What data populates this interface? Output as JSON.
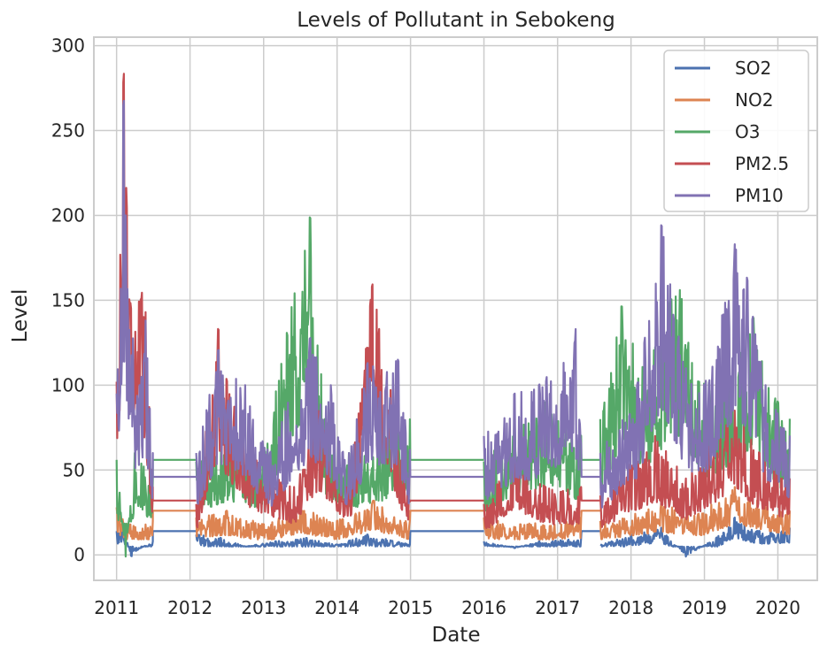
{
  "chart_data": {
    "type": "line",
    "title": "Levels of Pollutant in Sebokeng",
    "xlabel": "Date",
    "ylabel": "Level",
    "xlim": [
      "2010-09-10",
      "2020-07-15"
    ],
    "ylim": [
      -15,
      305
    ],
    "x_ticks": [
      "2011",
      "2012",
      "2013",
      "2014",
      "2015",
      "2016",
      "2017",
      "2018",
      "2019",
      "2020"
    ],
    "y_ticks": [
      0,
      50,
      100,
      150,
      200,
      250,
      300
    ],
    "grid": true,
    "legend_position": "top-right",
    "colors": {
      "SO2": "#4c72b0",
      "NO2": "#dd8452",
      "O3": "#55a868",
      "PM2.5": "#c44e52",
      "PM10": "#8172b3",
      "grid": "#cccccc",
      "background": "#ffffff"
    },
    "data_segments": [
      [
        "2011-01-01",
        "2011-06-30"
      ],
      [
        "2012-02-01",
        "2014-12-31"
      ],
      [
        "2016-01-01",
        "2017-04-30"
      ],
      [
        "2017-08-01",
        "2020-03-01"
      ]
    ],
    "series": [
      {
        "name": "SO2",
        "gap_fill_value": 14,
        "points": [
          [
            "2011-01-01",
            14
          ],
          [
            "2011-02-01",
            18
          ],
          [
            "2011-03-15",
            -1
          ],
          [
            "2011-05-01",
            4
          ],
          [
            "2011-06-30",
            8
          ],
          [
            "2012-02-01",
            12
          ],
          [
            "2012-06-01",
            10
          ],
          [
            "2012-10-01",
            5
          ],
          [
            "2013-03-01",
            8
          ],
          [
            "2013-08-01",
            10
          ],
          [
            "2014-01-01",
            6
          ],
          [
            "2014-06-01",
            12
          ],
          [
            "2014-12-31",
            6
          ],
          [
            "2016-01-01",
            8
          ],
          [
            "2016-06-01",
            4
          ],
          [
            "2016-10-01",
            8
          ],
          [
            "2017-04-30",
            10
          ],
          [
            "2017-08-01",
            6
          ],
          [
            "2018-01-01",
            12
          ],
          [
            "2018-06-01",
            16
          ],
          [
            "2018-10-01",
            -1
          ],
          [
            "2019-03-01",
            10
          ],
          [
            "2019-06-01",
            22
          ],
          [
            "2019-10-01",
            14
          ],
          [
            "2020-03-01",
            16
          ]
        ]
      },
      {
        "name": "NO2",
        "gap_fill_value": 26,
        "points": [
          [
            "2011-01-01",
            28
          ],
          [
            "2011-03-01",
            18
          ],
          [
            "2011-06-30",
            20
          ],
          [
            "2012-02-01",
            22
          ],
          [
            "2012-07-01",
            26
          ],
          [
            "2013-01-01",
            18
          ],
          [
            "2013-07-01",
            28
          ],
          [
            "2014-01-01",
            20
          ],
          [
            "2014-07-01",
            32
          ],
          [
            "2014-12-31",
            20
          ],
          [
            "2016-01-01",
            22
          ],
          [
            "2016-07-01",
            18
          ],
          [
            "2017-04-30",
            22
          ],
          [
            "2017-08-01",
            20
          ],
          [
            "2018-06-01",
            30
          ],
          [
            "2018-12-01",
            24
          ],
          [
            "2019-06-01",
            40
          ],
          [
            "2020-03-01",
            26
          ]
        ]
      },
      {
        "name": "O3",
        "gap_fill_value": 56,
        "points": [
          [
            "2011-01-01",
            56
          ],
          [
            "2011-02-15",
            -1
          ],
          [
            "2011-04-01",
            60
          ],
          [
            "2011-06-30",
            45
          ],
          [
            "2012-02-01",
            55
          ],
          [
            "2012-07-01",
            70
          ],
          [
            "2013-01-01",
            60
          ],
          [
            "2013-05-20",
            146
          ],
          [
            "2013-08-20",
            200
          ],
          [
            "2013-11-01",
            80
          ],
          [
            "2014-03-01",
            60
          ],
          [
            "2014-08-01",
            70
          ],
          [
            "2014-12-31",
            80
          ],
          [
            "2016-01-01",
            55
          ],
          [
            "2016-06-01",
            78
          ],
          [
            "2016-11-01",
            90
          ],
          [
            "2017-04-30",
            70
          ],
          [
            "2017-08-01",
            80
          ],
          [
            "2017-11-15",
            147
          ],
          [
            "2018-03-01",
            110
          ],
          [
            "2018-07-15",
            150
          ],
          [
            "2018-09-01",
            156
          ],
          [
            "2019-01-01",
            100
          ],
          [
            "2019-05-01",
            115
          ],
          [
            "2019-09-01",
            140
          ],
          [
            "2020-01-01",
            90
          ],
          [
            "2020-03-01",
            80
          ]
        ]
      },
      {
        "name": "PM2.5",
        "gap_fill_value": 32,
        "points": [
          [
            "2011-01-01",
            102
          ],
          [
            "2011-02-05",
            289
          ],
          [
            "2011-02-20",
            205
          ],
          [
            "2011-05-25",
            143
          ],
          [
            "2011-06-30",
            40
          ],
          [
            "2012-02-01",
            30
          ],
          [
            "2012-05-20",
            134
          ],
          [
            "2012-07-01",
            103
          ],
          [
            "2012-11-01",
            60
          ],
          [
            "2013-06-01",
            40
          ],
          [
            "2013-10-01",
            85
          ],
          [
            "2014-03-01",
            40
          ],
          [
            "2014-06-25",
            160
          ],
          [
            "2014-12-31",
            30
          ],
          [
            "2016-01-01",
            30
          ],
          [
            "2016-06-01",
            60
          ],
          [
            "2016-11-01",
            40
          ],
          [
            "2017-04-30",
            40
          ],
          [
            "2017-08-01",
            35
          ],
          [
            "2018-05-01",
            70
          ],
          [
            "2018-10-01",
            45
          ],
          [
            "2019-06-01",
            85
          ],
          [
            "2019-10-01",
            60
          ],
          [
            "2020-03-01",
            45
          ]
        ]
      },
      {
        "name": "PM10",
        "gap_fill_value": 46,
        "points": [
          [
            "2011-01-01",
            95
          ],
          [
            "2011-02-05",
            275
          ],
          [
            "2011-02-15",
            200
          ],
          [
            "2011-04-15",
            90
          ],
          [
            "2011-05-25",
            138
          ],
          [
            "2011-06-30",
            60
          ],
          [
            "2012-02-01",
            60
          ],
          [
            "2012-05-20",
            121
          ],
          [
            "2012-10-01",
            100
          ],
          [
            "2013-02-01",
            60
          ],
          [
            "2013-08-20",
            128
          ],
          [
            "2013-12-01",
            100
          ],
          [
            "2014-03-01",
            60
          ],
          [
            "2014-06-01",
            113
          ],
          [
            "2014-11-01",
            115
          ],
          [
            "2014-12-31",
            60
          ],
          [
            "2016-01-01",
            70
          ],
          [
            "2016-06-01",
            95
          ],
          [
            "2016-10-01",
            100
          ],
          [
            "2017-04-01",
            133
          ],
          [
            "2017-04-30",
            60
          ],
          [
            "2017-08-01",
            60
          ],
          [
            "2018-02-01",
            100
          ],
          [
            "2018-06-01",
            195
          ],
          [
            "2018-10-01",
            110
          ],
          [
            "2019-01-01",
            100
          ],
          [
            "2019-06-01",
            183
          ],
          [
            "2019-08-01",
            163
          ],
          [
            "2019-11-01",
            100
          ],
          [
            "2020-03-01",
            70
          ]
        ]
      }
    ]
  }
}
